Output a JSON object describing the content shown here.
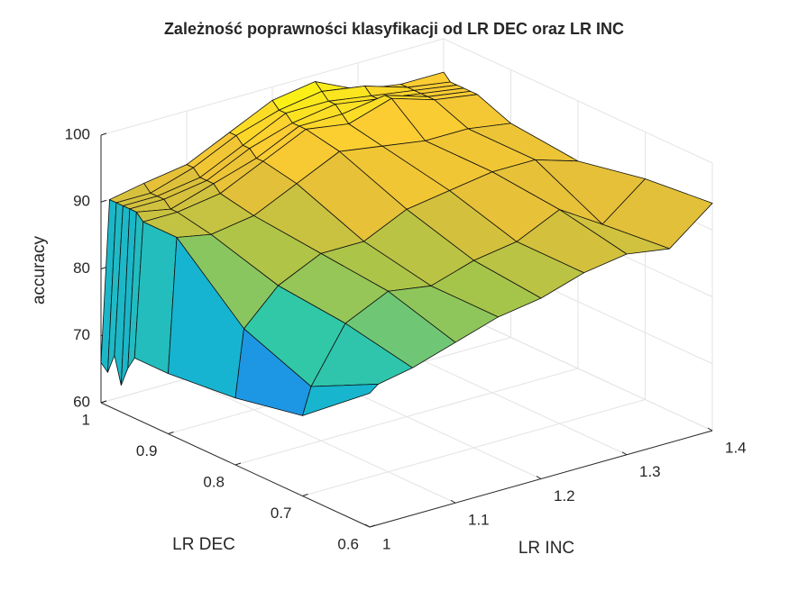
{
  "chart_data": {
    "type": "surface",
    "title": "Zależność poprawności klasyfikacji od LR DEC oraz LR INC",
    "xlabel": "LR INC",
    "ylabel": "LR DEC",
    "zlabel": "accuracy",
    "x": [
      1,
      1.01,
      1.05,
      1.1,
      1.15,
      1.2,
      1.25,
      1.3,
      1.35,
      1.4
    ],
    "y": [
      0.6,
      0.7,
      0.8,
      0.9,
      0.95,
      0.96,
      0.97,
      0.98,
      0.99,
      1
    ],
    "z": [
      [
        80,
        81,
        82,
        84,
        86,
        87,
        89,
        90,
        89,
        94
      ],
      [
        72,
        76,
        84,
        87,
        86,
        88,
        89,
        92,
        88,
        93
      ],
      [
        70,
        80,
        85,
        88,
        88,
        91,
        92,
        93,
        93,
        91
      ],
      [
        69,
        89,
        88,
        89,
        92,
        95,
        94,
        93,
        93,
        92
      ],
      [
        69,
        89,
        89,
        90,
        93,
        96,
        95,
        97,
        95,
        94
      ],
      [
        67,
        90,
        89,
        91,
        93,
        96,
        96,
        97,
        95,
        94
      ],
      [
        64,
        90,
        90,
        91,
        94,
        96,
        97,
        96,
        95,
        94
      ],
      [
        68,
        90,
        90,
        91,
        94,
        97,
        97,
        96,
        95,
        94
      ],
      [
        65,
        90,
        90,
        92,
        95,
        97,
        98,
        97,
        95,
        94
      ],
      [
        66,
        90,
        91,
        92,
        95,
        98,
        99,
        96,
        95,
        95
      ]
    ],
    "xlim": [
      1,
      1.4
    ],
    "xticks": [
      1,
      1.1,
      1.2,
      1.3,
      1.4
    ],
    "ylim": [
      0.6,
      1
    ],
    "yticks": [
      0.6,
      0.7,
      0.8,
      0.9,
      1
    ],
    "zlim": [
      60,
      100
    ],
    "zticks": [
      60,
      70,
      80,
      90,
      100
    ],
    "grid": true,
    "colormap": "parula"
  }
}
